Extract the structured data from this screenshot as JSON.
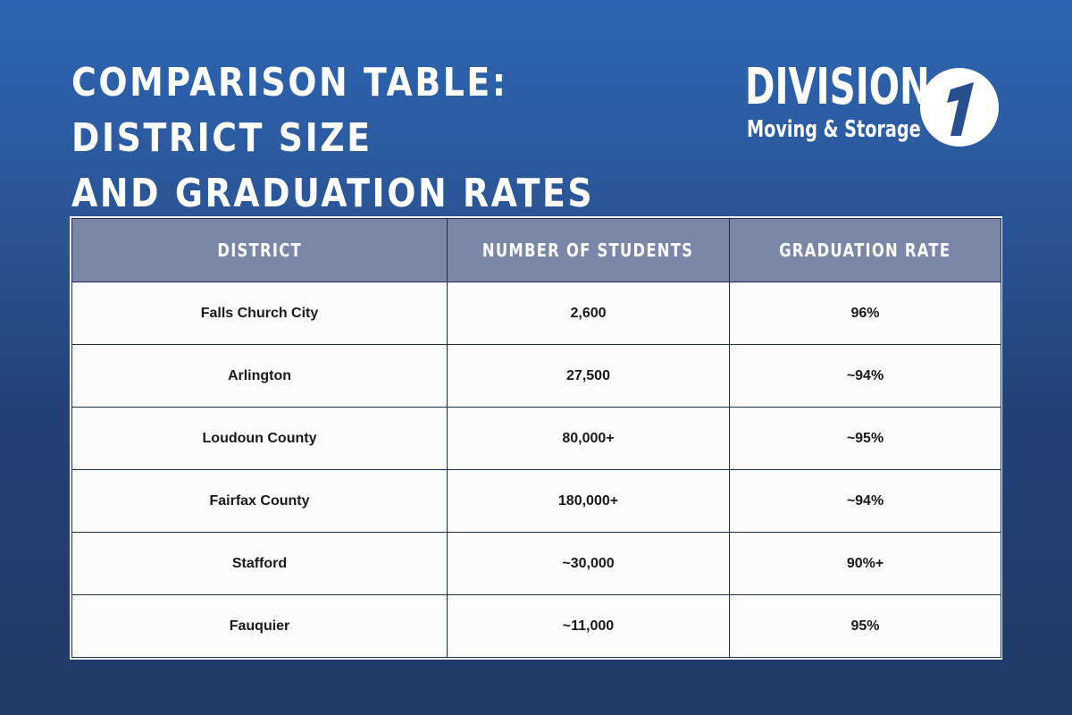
{
  "title": {
    "line1": "COMPARISON TABLE: DISTRICT SIZE",
    "line2": "AND GRADUATION RATES"
  },
  "logo": {
    "word": "DIVISION",
    "mark": "1",
    "subtitle": "Moving & Storage"
  },
  "colors": {
    "background_top": "#2d66b4",
    "background_bottom": "#213a66",
    "header_fill": "#7c87a7",
    "cell_fill": "#fbfbfb",
    "border": "#1f2d4a"
  },
  "table": {
    "headers": [
      "DISTRICT",
      "NUMBER OF STUDENTS",
      "GRADUATION RATE"
    ],
    "rows": [
      [
        "Falls Church City",
        "2,600",
        "96%"
      ],
      [
        "Arlington",
        "27,500",
        "~94%"
      ],
      [
        "Loudoun County",
        "80,000+",
        "~95%"
      ],
      [
        "Fairfax County",
        "180,000+",
        "~94%"
      ],
      [
        "Stafford",
        "~30,000",
        "90%+"
      ],
      [
        "Fauquier",
        "~11,000",
        "95%"
      ]
    ]
  }
}
